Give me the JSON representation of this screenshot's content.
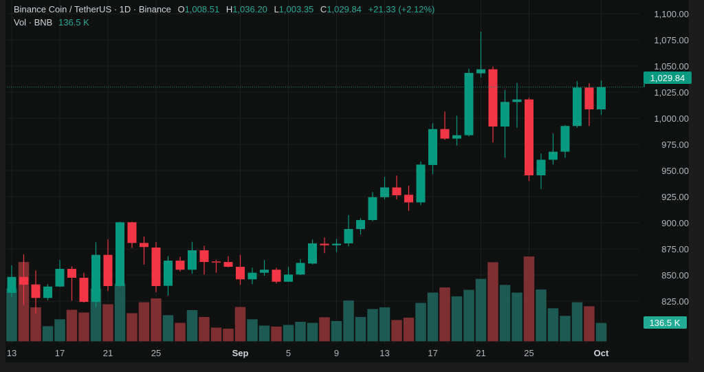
{
  "header": {
    "symbol": "Binance Coin / TetherUS · 1D · Binance",
    "o_label": "O",
    "o_value": "1,008.51",
    "h_label": "H",
    "h_value": "1,036.20",
    "l_label": "L",
    "l_value": "1,003.35",
    "c_label": "C",
    "c_value": "1,029.84",
    "change": "+21.33 (+2.12%)",
    "vol_label": "Vol · BNB",
    "vol_value": "136.5 K"
  },
  "badges": {
    "last_price": "1,029.84",
    "last_volume": "136.5 K"
  },
  "colors": {
    "up": "#089981",
    "down": "#f23645",
    "vol_up": "#1d5a54",
    "vol_down": "#7d2f31",
    "badge_price": "#089981",
    "badge_vol": "#22ab94"
  },
  "chart_data": {
    "type": "candlestick",
    "title": "Binance Coin / TetherUS · 1D · Binance",
    "ylim": [
      810,
      1110
    ],
    "y_ticks": [
      {
        "value": 1100,
        "label": "1,100.00"
      },
      {
        "value": 1075,
        "label": "1,075.00"
      },
      {
        "value": 1050,
        "label": "1,050.00"
      },
      {
        "value": 1025,
        "label": "1,025.00"
      },
      {
        "value": 1000,
        "label": "1,000.00"
      },
      {
        "value": 975,
        "label": "975.00"
      },
      {
        "value": 950,
        "label": "950.00"
      },
      {
        "value": 925,
        "label": "925.00"
      },
      {
        "value": 900,
        "label": "900.00"
      },
      {
        "value": 875,
        "label": "875.00"
      },
      {
        "value": 850,
        "label": "850.00"
      },
      {
        "value": 825,
        "label": "825.00"
      }
    ],
    "x_ticks": [
      {
        "index": 0,
        "label": "13"
      },
      {
        "index": 4,
        "label": "17"
      },
      {
        "index": 8,
        "label": "21"
      },
      {
        "index": 12,
        "label": "25"
      },
      {
        "index": 19,
        "label": "Sep",
        "bold": true
      },
      {
        "index": 23,
        "label": "5"
      },
      {
        "index": 27,
        "label": "9"
      },
      {
        "index": 31,
        "label": "13"
      },
      {
        "index": 35,
        "label": "17"
      },
      {
        "index": 39,
        "label": "21"
      },
      {
        "index": 43,
        "label": "25"
      },
      {
        "index": 49,
        "label": "Oct",
        "bold": true
      }
    ],
    "open": [
      832.9,
      848.2,
      841.0,
      828.1,
      839.0,
      855.9,
      847.4,
      824.3,
      869.3,
      839.5,
      900.5,
      880.7,
      876.3,
      839.7,
      863.8,
      855.1,
      873.7,
      863.0,
      862.5,
      857.9,
      845.9,
      852.2,
      855.1,
      843.6,
      850.5,
      861.0,
      880.0,
      878.5,
      880.3,
      894.0,
      902.6,
      924.5,
      933.8,
      926.8,
      919.5,
      955.3,
      989.7,
      980.5,
      983.8,
      1043.0,
      1046.9,
      992.1,
      1015.6,
      1018.0,
      945.4,
      960.3,
      968.0,
      992.6,
      1029.4,
      1008.51
    ],
    "high": [
      859.2,
      869.7,
      854.4,
      841.3,
      864.3,
      858.4,
      852.2,
      881.4,
      884.0,
      901.0,
      901.0,
      886.8,
      881.4,
      868.2,
      867.6,
      881.8,
      878.0,
      864.3,
      868.0,
      869.3,
      857.0,
      864.3,
      857.0,
      857.7,
      865.3,
      884.0,
      886.0,
      884.7,
      907.4,
      904.4,
      929.4,
      943.9,
      945.2,
      935.5,
      958.6,
      995.2,
      1006.4,
      1002.4,
      1047.4,
      1082.9,
      1049.5,
      1027.0,
      1033.8,
      1019.5,
      966.3,
      985.5,
      993.6,
      1035.7,
      1033.6,
      1036.2
    ],
    "low": [
      829.1,
      821.5,
      813.2,
      825.9,
      838.6,
      825.5,
      823.7,
      819.3,
      834.7,
      839.0,
      875.9,
      859.9,
      833.6,
      830.3,
      853.3,
      851.1,
      850.5,
      852.2,
      857.4,
      840.8,
      841.3,
      849.3,
      841.9,
      843.4,
      850.0,
      860.0,
      870.8,
      872.0,
      877.4,
      888.8,
      901.5,
      922.4,
      922.4,
      911.4,
      916.9,
      946.5,
      979.4,
      973.9,
      982.7,
      1039.0,
      976.8,
      962.3,
      991.0,
      940.0,
      932.2,
      955.7,
      962.3,
      991.0,
      992.6,
      1003.35
    ],
    "close": [
      848.2,
      840.8,
      828.1,
      839.0,
      855.9,
      847.4,
      824.3,
      869.3,
      839.5,
      900.5,
      880.7,
      876.8,
      839.5,
      863.8,
      855.1,
      873.7,
      862.5,
      862.3,
      857.9,
      845.9,
      852.2,
      855.1,
      843.6,
      850.5,
      861.6,
      880.3,
      878.5,
      880.0,
      894.1,
      902.6,
      924.5,
      933.8,
      926.3,
      919.5,
      955.7,
      989.7,
      980.5,
      983.8,
      1043.4,
      1046.9,
      992.1,
      1015.6,
      1018.0,
      945.4,
      960.3,
      968.0,
      992.6,
      1029.4,
      1008.51,
      1029.84
    ],
    "volume_k": [
      388,
      580,
      250,
      113,
      163,
      232,
      212,
      387,
      273,
      422,
      208,
      287,
      315,
      193,
      137,
      230,
      180,
      103,
      95,
      253,
      163,
      117,
      110,
      122,
      145,
      137,
      178,
      150,
      300,
      180,
      238,
      250,
      158,
      175,
      282,
      357,
      395,
      330,
      377,
      457,
      578,
      413,
      357,
      620,
      380,
      243,
      188,
      287,
      258,
      136.5
    ],
    "last_price": 1029.84
  }
}
